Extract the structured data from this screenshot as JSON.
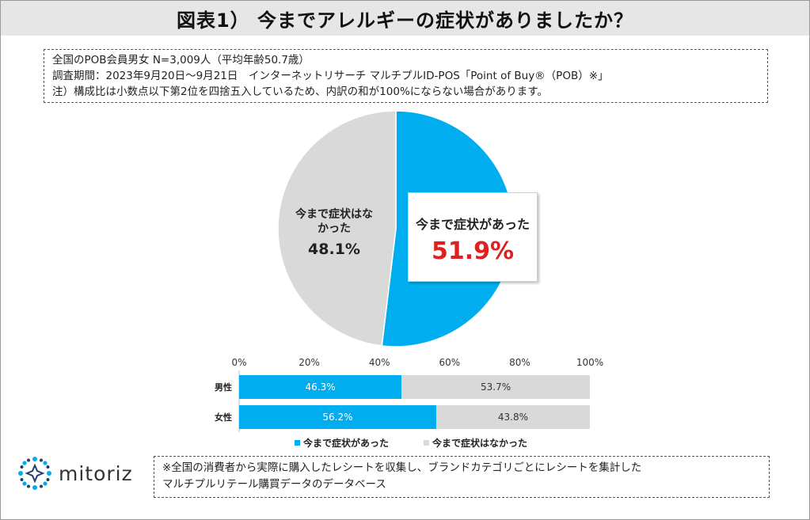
{
  "title": "図表1） 今までアレルギーの症状がありましたか？",
  "notes": [
    "全国のPOB会員男女 N=3,009人（平均年齢50.7歳）",
    "調査期間：2023年9月20日〜9月21日　インターネットリサーチ マルチプルID-POS「Point of Buy®（POB）※」",
    "注）構成比は小数点以下第2位を四捨五入しているため、内訳の和が100%にならない場合があります。"
  ],
  "colors": {
    "yes": "#00aeef",
    "no": "#d9d9d9",
    "highlight": "#e02020",
    "title_bg": "#e6e6e6"
  },
  "chart_data": [
    {
      "type": "pie",
      "categories": [
        "今まで症状があった",
        "今まで症状はなかった"
      ],
      "values": [
        51.9,
        48.1
      ],
      "value_labels": [
        "51.9%",
        "48.1%"
      ],
      "slice_labels": [
        "今まで症状があった",
        "今まで症状はな|かった"
      ]
    },
    {
      "type": "bar",
      "orientation": "horizontal",
      "stacked": true,
      "categories": [
        "男性",
        "女性"
      ],
      "series": [
        {
          "name": "今まで症状があった",
          "values": [
            46.3,
            56.2
          ]
        },
        {
          "name": "今まで症状はなかった",
          "values": [
            53.7,
            43.8
          ]
        }
      ],
      "xlim": [
        0,
        100
      ],
      "x_ticks": [
        "0%",
        "20%",
        "40%",
        "60%",
        "80%",
        "100%"
      ],
      "legend_position": "bottom"
    }
  ],
  "logo": {
    "text": "mitoriz"
  },
  "footnote": [
    "※全国の消費者から実際に購入したレシートを収集し、ブランドカテゴリごとにレシートを集計した",
    "マルチプルリテール購買データのデータベース"
  ]
}
